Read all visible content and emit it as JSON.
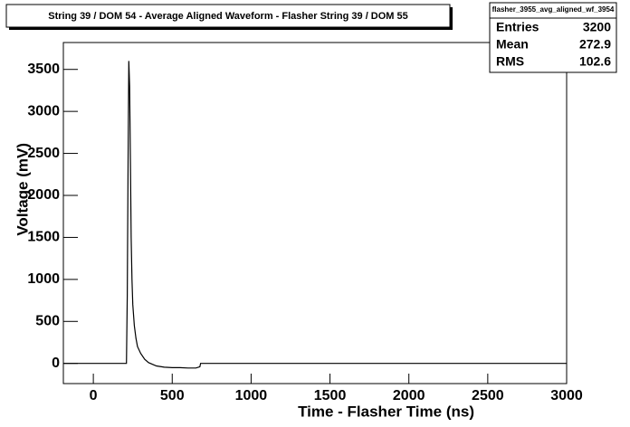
{
  "chart_data": {
    "type": "line",
    "title": "String 39 / DOM 54 - Average Aligned Waveform - Flasher String 39 / DOM 55",
    "x_label": "Time - Flasher Time (ns)",
    "y_label": "Voltage (mV)",
    "x": [
      -190,
      200,
      210,
      215,
      220,
      225,
      230,
      235,
      240,
      245,
      250,
      260,
      270,
      280,
      300,
      325,
      350,
      400,
      450,
      500,
      550,
      600,
      650,
      675,
      680,
      3000
    ],
    "series": [
      {
        "color": "#000000",
        "values": [
          0,
          0,
          0,
          800,
          2400,
          3600,
          3300,
          2400,
          1500,
          1000,
          700,
          450,
          300,
          200,
          120,
          50,
          10,
          -30,
          -45,
          -50,
          -50,
          -55,
          -55,
          -40,
          0,
          0
        ]
      }
    ],
    "xlim": [
      -190,
      3000
    ],
    "ylim": [
      -240,
      3820
    ],
    "xticks": [
      0,
      500,
      1000,
      1500,
      2000,
      2500,
      3000
    ],
    "yticks": [
      0,
      500,
      1000,
      1500,
      2000,
      2500,
      3000,
      3500
    ],
    "stats": {
      "name": "flasher_3955_avg_aligned_wf_3954",
      "rows": [
        {
          "label": "Entries",
          "value": 3200
        },
        {
          "label": "Mean",
          "value": 272.9
        },
        {
          "label": "RMS",
          "value": 102.6
        }
      ]
    }
  }
}
